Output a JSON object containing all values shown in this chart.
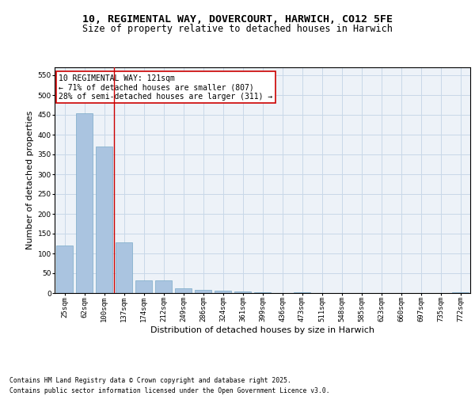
{
  "title": "10, REGIMENTAL WAY, DOVERCOURT, HARWICH, CO12 5FE",
  "subtitle": "Size of property relative to detached houses in Harwich",
  "xlabel": "Distribution of detached houses by size in Harwich",
  "ylabel": "Number of detached properties",
  "categories": [
    "25sqm",
    "62sqm",
    "100sqm",
    "137sqm",
    "174sqm",
    "212sqm",
    "249sqm",
    "286sqm",
    "324sqm",
    "361sqm",
    "399sqm",
    "436sqm",
    "473sqm",
    "511sqm",
    "548sqm",
    "585sqm",
    "623sqm",
    "660sqm",
    "697sqm",
    "735sqm",
    "772sqm"
  ],
  "values": [
    120,
    455,
    370,
    128,
    33,
    33,
    12,
    9,
    6,
    5,
    2,
    0,
    2,
    0,
    0,
    1,
    0,
    0,
    0,
    0,
    3
  ],
  "bar_color": "#aac4e0",
  "bar_edge_color": "#7aaac8",
  "grid_color": "#c8d8e8",
  "background_color": "#edf2f8",
  "vline_x": 2.5,
  "vline_color": "#cc0000",
  "annotation_text": "10 REGIMENTAL WAY: 121sqm\n← 71% of detached houses are smaller (807)\n28% of semi-detached houses are larger (311) →",
  "annotation_box_edge_color": "#cc0000",
  "annotation_box_bg": "#ffffff",
  "ylim": [
    0,
    570
  ],
  "yticks": [
    0,
    50,
    100,
    150,
    200,
    250,
    300,
    350,
    400,
    450,
    500,
    550
  ],
  "footer_line1": "Contains HM Land Registry data © Crown copyright and database right 2025.",
  "footer_line2": "Contains public sector information licensed under the Open Government Licence v3.0.",
  "title_fontsize": 9.5,
  "subtitle_fontsize": 8.5,
  "tick_fontsize": 6.5,
  "label_fontsize": 8,
  "annotation_fontsize": 7,
  "footer_fontsize": 5.8
}
